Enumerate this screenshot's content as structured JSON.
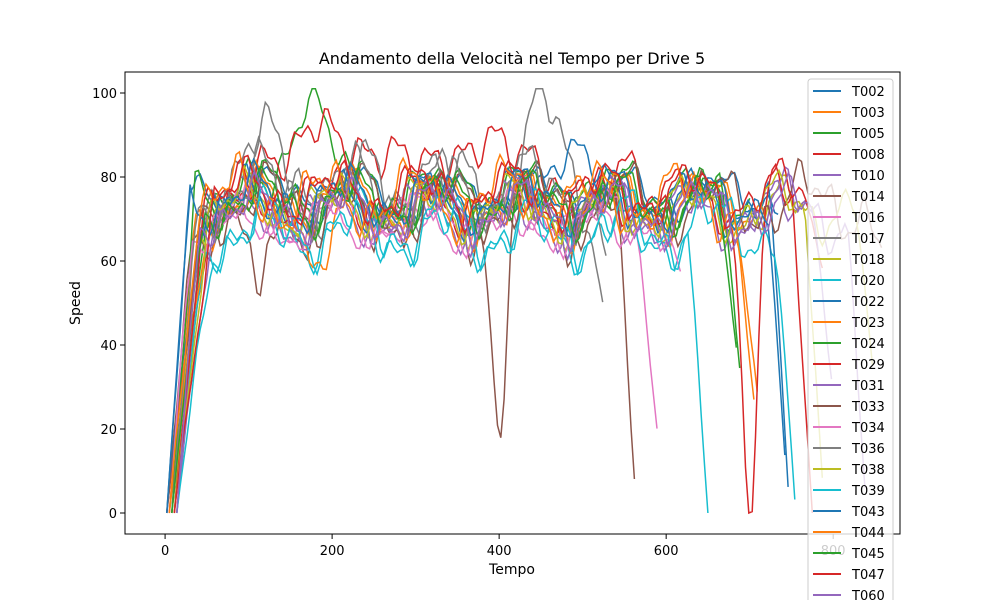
{
  "chart_data": {
    "type": "line",
    "title": "Andamento della Velocità nel Tempo per Drive 5",
    "xlabel": "Tempo",
    "ylabel": "Speed",
    "xlim": [
      -48,
      880
    ],
    "ylim": [
      -5,
      105
    ],
    "xticks": [
      0,
      200,
      400,
      600,
      800
    ],
    "yticks": [
      0,
      20,
      40,
      60,
      80,
      100
    ],
    "grid": false,
    "legend_position": "top-right",
    "series": [
      {
        "name": "T002",
        "color": "#1f77b4",
        "end": 735,
        "level": 76,
        "amp": 4,
        "phase": 0.3,
        "dips": []
      },
      {
        "name": "T003",
        "color": "#ff7f0e",
        "end": 722,
        "level": 74,
        "amp": 5,
        "phase": 1.1,
        "dips": []
      },
      {
        "name": "T005",
        "color": "#2ca02c",
        "end": 700,
        "level": 75,
        "amp": 5,
        "phase": 2.0,
        "dips": [],
        "peaks": [
          [
            170,
            100.5
          ]
        ]
      },
      {
        "name": "T008",
        "color": "#d62728",
        "end": 610,
        "level": 77,
        "amp": 6,
        "phase": 0.7,
        "dips": [],
        "peaks": [
          [
            180,
            99
          ],
          [
            280,
            92
          ],
          [
            390,
            95.5
          ]
        ]
      },
      {
        "name": "T010",
        "color": "#9467bd",
        "end": 760,
        "level": 71,
        "amp": 5,
        "phase": 2.6,
        "dips": []
      },
      {
        "name": "T014",
        "color": "#8c564b",
        "end": 565,
        "level": 72,
        "amp": 7,
        "phase": 1.6,
        "dips": [
          [
            110,
            43
          ],
          [
            400,
            21
          ]
        ],
        "tail": 0
      },
      {
        "name": "T016",
        "color": "#e377c2",
        "end": 590,
        "level": 69,
        "amp": 4,
        "phase": 3.1,
        "dips": [],
        "tail": 18
      },
      {
        "name": "T017",
        "color": "#7f7f7f",
        "end": 527,
        "level": 78,
        "amp": 7,
        "phase": 0.2,
        "dips": [],
        "peaks": [
          [
            105,
            89.5
          ],
          [
            455,
            94
          ]
        ],
        "tail": 46
      },
      {
        "name": "T018",
        "color": "#bcbd22",
        "end": 790,
        "level": 72,
        "amp": 5,
        "phase": 1.9,
        "dips": [],
        "tail": 0
      },
      {
        "name": "T020",
        "color": "#17becf",
        "end": 650,
        "level": 66,
        "amp": 5,
        "phase": 0.9,
        "dips": [],
        "tail": 0
      },
      {
        "name": "T022",
        "color": "#1f77b4",
        "end": 748,
        "level": 74,
        "amp": 5,
        "phase": 2.3,
        "dips": [],
        "peaks": [
          [
            480,
            89.5
          ]
        ],
        "tail": 0
      },
      {
        "name": "T023",
        "color": "#ff7f0e",
        "end": 710,
        "level": 73,
        "amp": 6,
        "phase": 1.3,
        "dips": [
          [
            190,
            55
          ]
        ],
        "tail": 27
      },
      {
        "name": "T024",
        "color": "#2ca02c",
        "end": 690,
        "level": 76,
        "amp": 5,
        "phase": 0.5,
        "dips": [],
        "tail": 31
      },
      {
        "name": "T029",
        "color": "#d62728",
        "end": 775,
        "level": 75,
        "amp": 5,
        "phase": 2.8,
        "dips": [
          [
            700,
            0
          ]
        ],
        "tail": 0
      },
      {
        "name": "T031",
        "color": "#9467bd",
        "end": 840,
        "level": 72,
        "amp": 6,
        "phase": 1.7,
        "dips": [],
        "tail": 0
      },
      {
        "name": "T033",
        "color": "#8c564b",
        "end": 860,
        "level": 74,
        "amp": 6,
        "phase": 0.4,
        "dips": [],
        "tail": 62
      },
      {
        "name": "T034",
        "color": "#e377c2",
        "end": 620,
        "level": 70,
        "amp": 5,
        "phase": 2.1,
        "dips": [],
        "tail": 55
      },
      {
        "name": "T036",
        "color": "#7f7f7f",
        "end": 530,
        "level": 77,
        "amp": 7,
        "phase": 1.0,
        "dips": [],
        "tail": 60
      },
      {
        "name": "T038",
        "color": "#bcbd22",
        "end": 850,
        "level": 73,
        "amp": 5,
        "phase": 2.4,
        "dips": [],
        "tail": 29
      },
      {
        "name": "T039",
        "color": "#17becf",
        "end": 755,
        "level": 68,
        "amp": 6,
        "phase": 0.6,
        "dips": [],
        "tail": 0
      },
      {
        "name": "T043",
        "color": "#1f77b4",
        "end": 745,
        "level": 75,
        "amp": 5,
        "phase": 1.5,
        "dips": [],
        "tail": 4
      },
      {
        "name": "T044",
        "color": "#ff7f0e",
        "end": 705,
        "level": 75,
        "amp": 6,
        "phase": 3.0,
        "dips": [],
        "tail": 27
      },
      {
        "name": "T045",
        "color": "#2ca02c",
        "end": 685,
        "level": 74,
        "amp": 5,
        "phase": 0.8,
        "dips": [],
        "tail": 38
      },
      {
        "name": "T047",
        "color": "#d62728",
        "end": 790,
        "level": 76,
        "amp": 5,
        "phase": 2.2,
        "dips": [],
        "tail": 57
      },
      {
        "name": "T060",
        "color": "#9467bd",
        "end": 800,
        "level": 72,
        "amp": 5,
        "phase": 1.4,
        "dips": [],
        "tail": 29
      }
    ]
  }
}
